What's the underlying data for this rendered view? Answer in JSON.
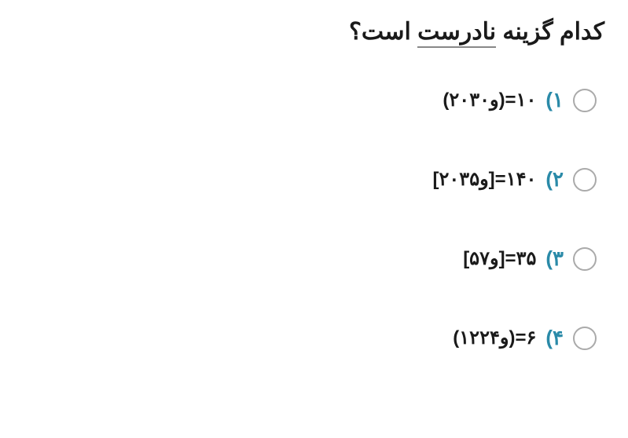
{
  "question": {
    "prefix": "کدام گزینه ",
    "underlined": "نادرست",
    "suffix": " است؟"
  },
  "options": [
    {
      "number": "۱)",
      "text": "(۲۰و۳۰)=۱۰"
    },
    {
      "number": "۲)",
      "text": "[۲۰و۳۵]=۱۴۰"
    },
    {
      "number": "۳)",
      "text": "[۵و۷]=۳۵"
    },
    {
      "number": "۴)",
      "text": "(۱۲و۲۴)=۶"
    }
  ],
  "colors": {
    "question_text": "#1a1a1a",
    "option_number": "#2a8aa8",
    "option_text": "#1a1a1a",
    "radio_border": "#aaaaaa",
    "underline": "#888888",
    "background": "#ffffff"
  },
  "typography": {
    "question_fontsize": 30,
    "question_fontweight": 900,
    "option_number_fontsize": 26,
    "option_number_fontweight": 900,
    "option_text_fontsize": 24,
    "option_text_fontweight": 700
  },
  "layout": {
    "option_gap": 70,
    "direction": "rtl"
  }
}
